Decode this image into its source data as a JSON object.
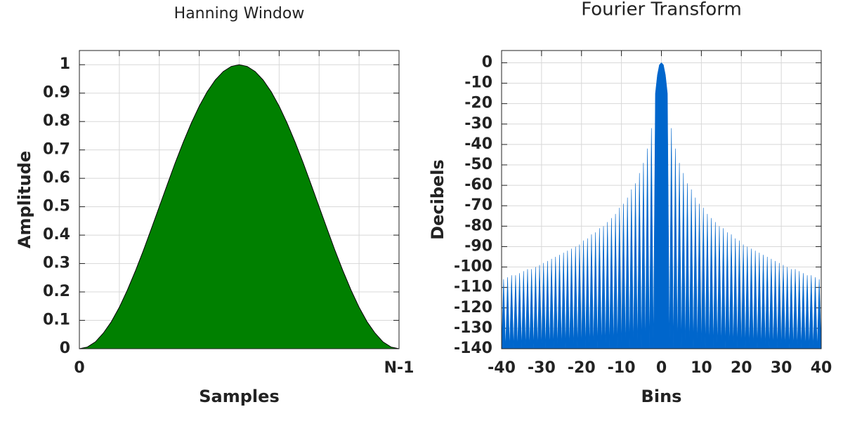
{
  "chart_data": [
    {
      "type": "area",
      "title": "Hanning Window",
      "x_label": "Samples",
      "y_label": "Amplitude",
      "x": [
        0,
        0.025,
        0.05,
        0.075,
        0.1,
        0.125,
        0.15,
        0.175,
        0.2,
        0.225,
        0.25,
        0.275,
        0.3,
        0.325,
        0.35,
        0.375,
        0.4,
        0.425,
        0.45,
        0.475,
        0.5,
        0.525,
        0.55,
        0.575,
        0.6,
        0.625,
        0.65,
        0.675,
        0.7,
        0.725,
        0.75,
        0.775,
        0.8,
        0.825,
        0.85,
        0.875,
        0.9,
        0.925,
        0.95,
        0.975,
        1
      ],
      "values": [
        0,
        0.006,
        0.024,
        0.055,
        0.095,
        0.146,
        0.206,
        0.273,
        0.345,
        0.422,
        0.5,
        0.578,
        0.655,
        0.727,
        0.794,
        0.854,
        0.905,
        0.946,
        0.976,
        0.994,
        1,
        0.994,
        0.976,
        0.946,
        0.905,
        0.854,
        0.794,
        0.727,
        0.655,
        0.578,
        0.5,
        0.422,
        0.345,
        0.273,
        0.206,
        0.146,
        0.095,
        0.055,
        0.024,
        0.006,
        0
      ],
      "color": "#008000",
      "edge_color": "#000000",
      "xlim": [
        0,
        1
      ],
      "xticks": [
        0,
        {
          "value": 1,
          "label": "N-1"
        }
      ],
      "ylim": [
        0,
        1.05
      ],
      "yticks": [
        0,
        0.1,
        0.2,
        0.3,
        0.4,
        0.5,
        0.6,
        0.7,
        0.8,
        0.9,
        1
      ],
      "grid": true
    },
    {
      "type": "area",
      "title": "Fourier Transform",
      "x_label": "Bins",
      "y_label": "Decibels",
      "x": [
        -40,
        -39.5,
        -39,
        -38.5,
        -38,
        -37.5,
        -37,
        -36.5,
        -36,
        -35.5,
        -35,
        -34.5,
        -34,
        -33.5,
        -33,
        -32.5,
        -32,
        -31.5,
        -31,
        -30.5,
        -30,
        -29.5,
        -29,
        -28.5,
        -28,
        -27.5,
        -27,
        -26.5,
        -26,
        -25.5,
        -25,
        -24.5,
        -24,
        -23.5,
        -23,
        -22.5,
        -22,
        -21.5,
        -21,
        -20.5,
        -20,
        -19.5,
        -19,
        -18.5,
        -18,
        -17.5,
        -17,
        -16.5,
        -16,
        -15.5,
        -15,
        -14.5,
        -14,
        -13.5,
        -13,
        -12.5,
        -12,
        -11.5,
        -11,
        -10.5,
        -10,
        -9.5,
        -9,
        -8.5,
        -8,
        -7.5,
        -7,
        -6.5,
        -6,
        -5.5,
        -5,
        -4.5,
        -4,
        -3.5,
        -3,
        -2.5,
        -2,
        -1.5,
        -1,
        -0.5,
        0,
        0.5,
        1,
        1.5,
        2,
        2.5,
        3,
        3.5,
        4,
        4.5,
        5,
        5.5,
        6,
        6.5,
        7,
        7.5,
        8,
        8.5,
        9,
        9.5,
        10,
        10.5,
        11,
        11.5,
        12,
        12.5,
        13,
        13.5,
        14,
        14.5,
        15,
        15.5,
        16,
        16.5,
        17,
        17.5,
        18,
        18.5,
        19,
        19.5,
        20,
        20.5,
        21,
        21.5,
        22,
        22.5,
        23,
        23.5,
        24,
        24.5,
        25,
        25.5,
        26,
        26.5,
        27,
        27.5,
        28,
        28.5,
        29,
        29.5,
        30,
        30.5,
        31,
        31.5,
        32,
        32.5,
        33,
        33.5,
        34,
        34.5,
        35,
        35.5,
        36,
        36.5,
        37,
        37.5,
        38,
        38.5,
        39,
        39.5,
        40
      ],
      "values": [
        -140,
        -106,
        -140,
        -105,
        -140,
        -104,
        -140,
        -104,
        -140,
        -103,
        -140,
        -102,
        -140,
        -101,
        -140,
        -101,
        -140,
        -100,
        -140,
        -99,
        -140,
        -98,
        -140,
        -97,
        -140,
        -96,
        -140,
        -95,
        -140,
        -94,
        -140,
        -93,
        -140,
        -92,
        -140,
        -91,
        -140,
        -90,
        -140,
        -89,
        -140,
        -87,
        -140,
        -86,
        -140,
        -84,
        -140,
        -83,
        -140,
        -81,
        -140,
        -80,
        -140,
        -78,
        -140,
        -76,
        -140,
        -74,
        -140,
        -71,
        -140,
        -69,
        -140,
        -66,
        -140,
        -62,
        -140,
        -59,
        -140,
        -54,
        -140,
        -49,
        -140,
        -42,
        -140,
        -32,
        -140,
        -15,
        -6,
        -1,
        0,
        -1,
        -6,
        -15,
        -140,
        -32,
        -140,
        -42,
        -140,
        -49,
        -140,
        -54,
        -140,
        -59,
        -140,
        -62,
        -140,
        -66,
        -140,
        -69,
        -140,
        -71,
        -140,
        -74,
        -140,
        -76,
        -140,
        -78,
        -140,
        -80,
        -140,
        -81,
        -140,
        -83,
        -140,
        -84,
        -140,
        -86,
        -140,
        -87,
        -140,
        -89,
        -140,
        -90,
        -140,
        -91,
        -140,
        -92,
        -140,
        -93,
        -140,
        -94,
        -140,
        -95,
        -140,
        -96,
        -140,
        -97,
        -140,
        -98,
        -140,
        -99,
        -140,
        -100,
        -140,
        -101,
        -140,
        -101,
        -140,
        -102,
        -140,
        -103,
        -140,
        -104,
        -140,
        -104,
        -140,
        -105,
        -140,
        -106,
        -140
      ],
      "color": "#0066cc",
      "xlim": [
        -40,
        40
      ],
      "xticks": [
        -40,
        -30,
        -20,
        -10,
        0,
        10,
        20,
        30,
        40
      ],
      "ylim": [
        -140,
        6
      ],
      "yticks": [
        0,
        -10,
        -20,
        -30,
        -40,
        -50,
        -60,
        -70,
        -80,
        -90,
        -100,
        -110,
        -120,
        -130,
        -140
      ],
      "grid": true
    }
  ]
}
